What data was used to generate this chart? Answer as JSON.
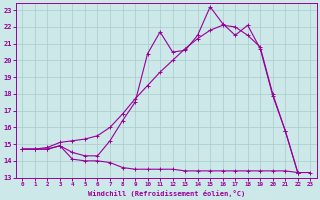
{
  "bg_color": "#cce8e8",
  "line_color": "#990099",
  "grid_color": "#aacccc",
  "xlabel": "Windchill (Refroidissement éolien,°C)",
  "xlim": [
    -0.5,
    23.5
  ],
  "ylim": [
    13,
    23.4
  ],
  "yticks": [
    13,
    14,
    15,
    16,
    17,
    18,
    19,
    20,
    21,
    22,
    23
  ],
  "xticks": [
    0,
    1,
    2,
    3,
    4,
    5,
    6,
    7,
    8,
    9,
    10,
    11,
    12,
    13,
    14,
    15,
    16,
    17,
    18,
    19,
    20,
    21,
    22,
    23
  ],
  "line1_x": [
    0,
    1,
    2,
    3,
    4,
    5,
    6,
    7,
    8,
    9,
    10,
    11,
    12,
    13,
    14,
    15,
    16,
    17,
    18,
    19,
    20,
    21,
    22
  ],
  "line1_y": [
    14.7,
    14.7,
    14.8,
    15.1,
    15.2,
    15.3,
    15.5,
    16.0,
    16.8,
    17.7,
    18.5,
    19.3,
    20.0,
    20.7,
    21.3,
    21.8,
    22.1,
    22.0,
    21.5,
    20.8,
    18.0,
    15.8,
    13.3
  ],
  "line2_x": [
    0,
    1,
    2,
    3,
    4,
    5,
    6,
    7,
    8,
    9,
    10,
    11,
    12,
    13,
    14,
    15,
    16,
    17,
    18,
    19,
    20,
    21,
    22
  ],
  "line2_y": [
    14.7,
    14.7,
    14.7,
    14.9,
    14.5,
    14.3,
    14.3,
    15.2,
    16.4,
    17.5,
    20.4,
    21.7,
    20.5,
    20.6,
    21.5,
    23.2,
    22.2,
    21.5,
    22.1,
    20.7,
    17.9,
    15.8,
    13.3
  ],
  "line3_x": [
    0,
    1,
    2,
    3,
    4,
    5,
    6,
    7,
    8,
    9,
    10,
    11,
    12,
    13,
    14,
    15,
    16,
    17,
    18,
    19,
    20,
    21,
    22,
    23
  ],
  "line3_y": [
    14.7,
    14.7,
    14.7,
    14.9,
    14.1,
    14.0,
    14.0,
    13.9,
    13.6,
    13.5,
    13.5,
    13.5,
    13.5,
    13.4,
    13.4,
    13.4,
    13.4,
    13.4,
    13.4,
    13.4,
    13.4,
    13.4,
    13.3,
    13.3
  ]
}
